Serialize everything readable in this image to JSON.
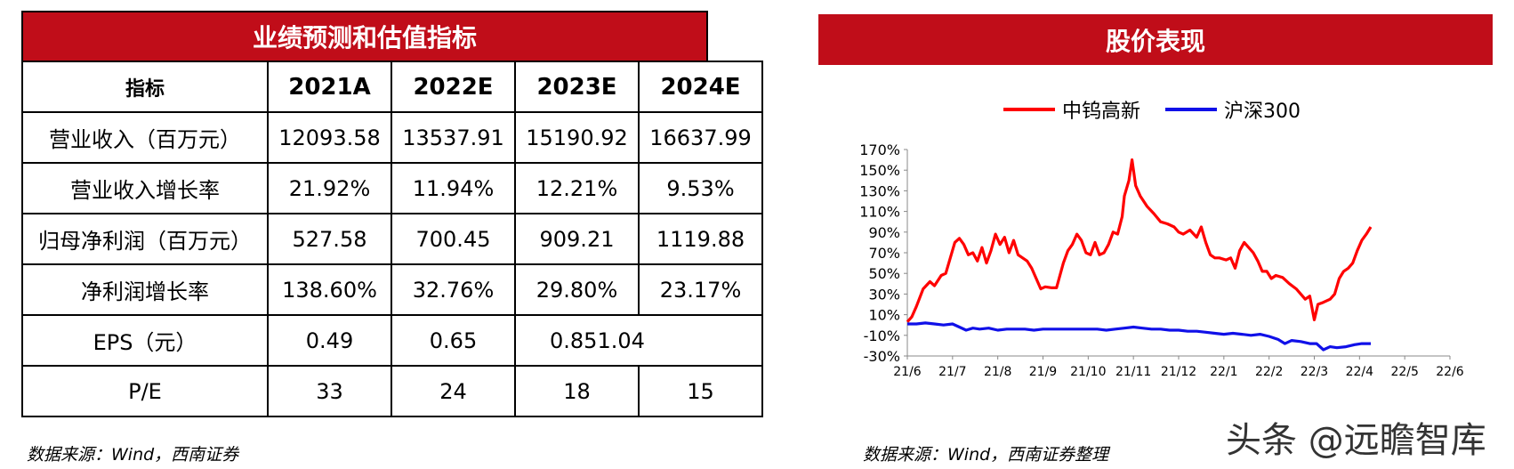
{
  "left_panel": {
    "title": "业绩预测和估值指标",
    "headers": [
      "指标",
      "2021A",
      "2022E",
      "2023E",
      "2024E"
    ],
    "rows": [
      [
        "营业收入（百万元）",
        "12093.58",
        "13537.91",
        "15190.92",
        "16637.99"
      ],
      [
        "营业收入增长率",
        "21.92%",
        "11.94%",
        "12.21%",
        "9.53%"
      ],
      [
        "归母净利润（百万元）",
        "527.58",
        "700.45",
        "909.21",
        "1119.88"
      ],
      [
        "净利润增长率",
        "138.60%",
        "32.76%",
        "29.80%",
        "23.17%"
      ],
      [
        "EPS（元）",
        "0.49",
        "0.65",
        "0.851.04",
        ""
      ],
      [
        "P/E",
        "33",
        "24",
        "18",
        "15"
      ]
    ],
    "source": "数据来源：Wind，西南证券"
  },
  "right_panel": {
    "title": "股价表现",
    "source": "数据来源：Wind，西南证券整理",
    "watermark": "头条 @远瞻智库"
  },
  "colors": {
    "brand_red": "#c00d19",
    "series_red": "#ff0000",
    "series_blue": "#1010e8"
  },
  "chart_data": {
    "type": "line",
    "x_ticks": [
      "21/6",
      "21/7",
      "21/8",
      "21/9",
      "21/10",
      "21/11",
      "21/12",
      "22/1",
      "22/2",
      "22/3",
      "22/4",
      "22/5",
      "22/6"
    ],
    "y_ticks": [
      "170%",
      "150%",
      "130%",
      "110%",
      "90%",
      "70%",
      "50%",
      "30%",
      "10%",
      "-10%",
      "-30%"
    ],
    "ylim": [
      -30,
      170
    ],
    "legend_position": "top",
    "series": [
      {
        "name": "中钨高新",
        "color": "#ff0000",
        "points": [
          [
            0,
            3
          ],
          [
            0.1,
            8
          ],
          [
            0.2,
            18
          ],
          [
            0.35,
            35
          ],
          [
            0.5,
            42
          ],
          [
            0.6,
            38
          ],
          [
            0.75,
            48
          ],
          [
            0.85,
            50
          ],
          [
            0.95,
            65
          ],
          [
            1.05,
            80
          ],
          [
            1.15,
            84
          ],
          [
            1.25,
            78
          ],
          [
            1.35,
            68
          ],
          [
            1.45,
            70
          ],
          [
            1.55,
            62
          ],
          [
            1.65,
            75
          ],
          [
            1.75,
            60
          ],
          [
            1.85,
            72
          ],
          [
            1.95,
            88
          ],
          [
            2.05,
            78
          ],
          [
            2.15,
            85
          ],
          [
            2.25,
            70
          ],
          [
            2.35,
            82
          ],
          [
            2.45,
            68
          ],
          [
            2.55,
            65
          ],
          [
            2.65,
            62
          ],
          [
            2.75,
            55
          ],
          [
            2.85,
            45
          ],
          [
            2.95,
            35
          ],
          [
            3.05,
            37
          ],
          [
            3.2,
            36
          ],
          [
            3.3,
            36
          ],
          [
            3.45,
            60
          ],
          [
            3.55,
            72
          ],
          [
            3.65,
            78
          ],
          [
            3.75,
            88
          ],
          [
            3.85,
            82
          ],
          [
            3.95,
            70
          ],
          [
            4.05,
            68
          ],
          [
            4.15,
            80
          ],
          [
            4.25,
            68
          ],
          [
            4.35,
            70
          ],
          [
            4.45,
            78
          ],
          [
            4.55,
            90
          ],
          [
            4.65,
            88
          ],
          [
            4.75,
            105
          ],
          [
            4.8,
            125
          ],
          [
            4.9,
            140
          ],
          [
            4.97,
            160
          ],
          [
            5.05,
            135
          ],
          [
            5.15,
            125
          ],
          [
            5.3,
            115
          ],
          [
            5.45,
            108
          ],
          [
            5.6,
            100
          ],
          [
            5.75,
            98
          ],
          [
            5.9,
            95
          ],
          [
            6.0,
            90
          ],
          [
            6.1,
            88
          ],
          [
            6.25,
            92
          ],
          [
            6.4,
            85
          ],
          [
            6.5,
            95
          ],
          [
            6.6,
            80
          ],
          [
            6.7,
            68
          ],
          [
            6.8,
            65
          ],
          [
            6.9,
            65
          ],
          [
            7.05,
            63
          ],
          [
            7.15,
            65
          ],
          [
            7.25,
            55
          ],
          [
            7.35,
            72
          ],
          [
            7.45,
            80
          ],
          [
            7.55,
            75
          ],
          [
            7.65,
            70
          ],
          [
            7.75,
            62
          ],
          [
            7.85,
            52
          ],
          [
            7.95,
            52
          ],
          [
            8.05,
            45
          ],
          [
            8.15,
            48
          ],
          [
            8.3,
            46
          ],
          [
            8.45,
            40
          ],
          [
            8.6,
            35
          ],
          [
            8.7,
            30
          ],
          [
            8.8,
            25
          ],
          [
            8.9,
            28
          ],
          [
            9.0,
            5
          ],
          [
            9.08,
            20
          ],
          [
            9.2,
            22
          ],
          [
            9.35,
            25
          ],
          [
            9.45,
            30
          ],
          [
            9.55,
            45
          ],
          [
            9.65,
            52
          ],
          [
            9.75,
            55
          ],
          [
            9.85,
            60
          ],
          [
            9.95,
            72
          ],
          [
            10.05,
            82
          ],
          [
            10.15,
            88
          ],
          [
            10.25,
            95
          ]
        ]
      },
      {
        "name": "沪深300",
        "color": "#1010e8",
        "points": [
          [
            0,
            1
          ],
          [
            0.2,
            1
          ],
          [
            0.4,
            2
          ],
          [
            0.6,
            1
          ],
          [
            0.8,
            0
          ],
          [
            1.0,
            1
          ],
          [
            1.15,
            -2
          ],
          [
            1.3,
            -5
          ],
          [
            1.45,
            -3
          ],
          [
            1.6,
            -4
          ],
          [
            1.8,
            -3
          ],
          [
            2.0,
            -5
          ],
          [
            2.2,
            -4
          ],
          [
            2.4,
            -4
          ],
          [
            2.6,
            -4
          ],
          [
            2.8,
            -5
          ],
          [
            3.0,
            -4
          ],
          [
            3.2,
            -4
          ],
          [
            3.4,
            -4
          ],
          [
            3.6,
            -4
          ],
          [
            3.8,
            -4
          ],
          [
            4.0,
            -4
          ],
          [
            4.2,
            -4
          ],
          [
            4.4,
            -5
          ],
          [
            4.6,
            -4
          ],
          [
            4.8,
            -3
          ],
          [
            5.0,
            -2
          ],
          [
            5.2,
            -3
          ],
          [
            5.4,
            -4
          ],
          [
            5.6,
            -4
          ],
          [
            5.8,
            -5
          ],
          [
            6.0,
            -5
          ],
          [
            6.2,
            -6
          ],
          [
            6.4,
            -6
          ],
          [
            6.6,
            -7
          ],
          [
            6.8,
            -8
          ],
          [
            7.0,
            -9
          ],
          [
            7.2,
            -8
          ],
          [
            7.4,
            -9
          ],
          [
            7.6,
            -10
          ],
          [
            7.8,
            -9
          ],
          [
            8.0,
            -11
          ],
          [
            8.2,
            -14
          ],
          [
            8.35,
            -18
          ],
          [
            8.5,
            -15
          ],
          [
            8.7,
            -16
          ],
          [
            8.9,
            -18
          ],
          [
            9.05,
            -18
          ],
          [
            9.2,
            -24
          ],
          [
            9.35,
            -21
          ],
          [
            9.5,
            -22
          ],
          [
            9.7,
            -21
          ],
          [
            9.9,
            -19
          ],
          [
            10.05,
            -18
          ],
          [
            10.25,
            -18
          ]
        ]
      }
    ]
  }
}
